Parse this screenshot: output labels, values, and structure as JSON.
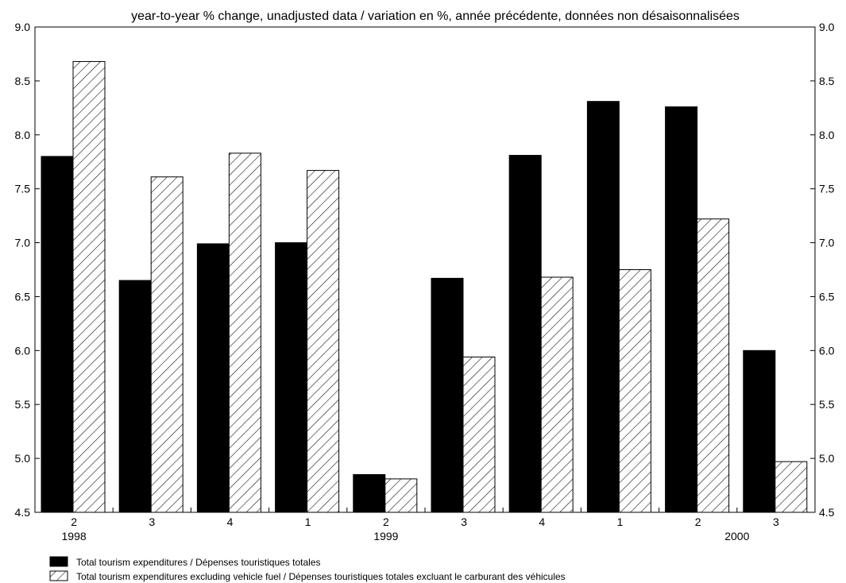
{
  "chart_data": {
    "type": "bar",
    "title": "year-to-year % change, unadjusted data / variation en %, année précédente, données non désaisonnalisées",
    "categories": [
      "2",
      "3",
      "4",
      "1",
      "2",
      "3",
      "4",
      "1",
      "2",
      "3"
    ],
    "year_labels": [
      {
        "label": "1998",
        "category_index": 0
      },
      {
        "label": "1999",
        "category_index": 4
      },
      {
        "label": "2000",
        "category_index": 8.5
      }
    ],
    "series": [
      {
        "name": "Total tourism expenditures / Dépenses touristiques totales",
        "fill": "solid",
        "color": "#000000",
        "values": [
          7.8,
          6.65,
          6.99,
          7.0,
          4.85,
          6.67,
          7.81,
          8.31,
          8.26,
          6.0
        ]
      },
      {
        "name": "Total tourism expenditures excluding vehicle fuel / Dépenses touristiques totales excluant le carburant des véhicules",
        "fill": "hatched",
        "color": "#000000",
        "values": [
          8.68,
          7.61,
          7.83,
          7.67,
          4.81,
          5.94,
          6.68,
          6.75,
          7.22,
          4.97
        ]
      }
    ],
    "ylim": [
      4.5,
      9.0
    ],
    "yticks": [
      "4.5",
      "5.0",
      "5.5",
      "6.0",
      "6.5",
      "7.0",
      "7.5",
      "8.0",
      "8.5",
      "9.0"
    ],
    "grid": false,
    "axes": "left and right",
    "legend_position": "bottom-left"
  }
}
